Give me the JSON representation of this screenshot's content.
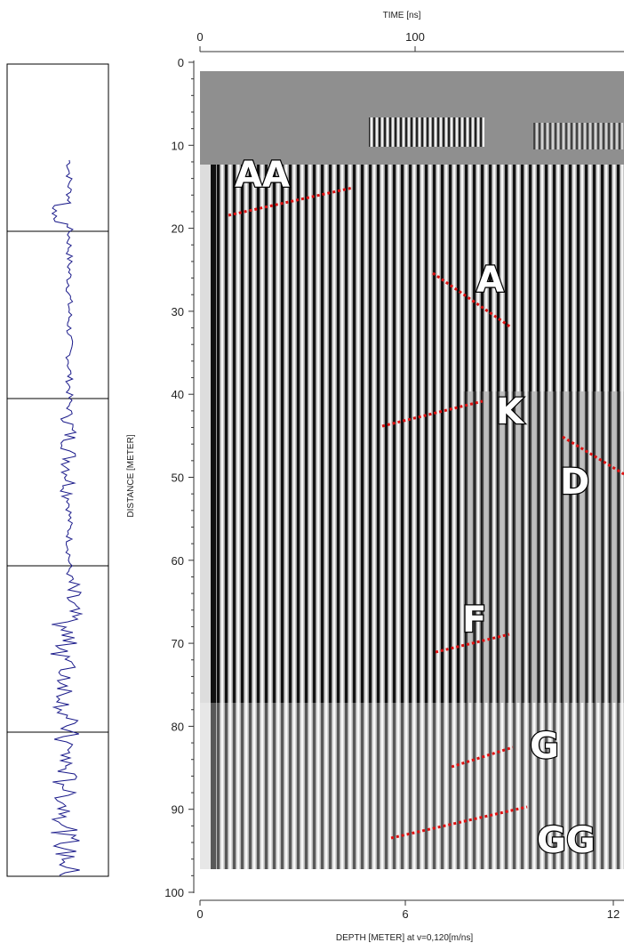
{
  "figure": {
    "top_axis": {
      "label": "TIME [ns]",
      "ticks": [
        "0",
        "100"
      ]
    },
    "left_axis": {
      "label": "DISTANCE [METER]",
      "ticks": [
        "0",
        "10",
        "20",
        "30",
        "40",
        "50",
        "60",
        "70",
        "80",
        "90",
        "100"
      ]
    },
    "bottom_axis": {
      "label": "DEPTH [METER] at v=0,120[m/ns]",
      "ticks": [
        "0",
        "6",
        "12"
      ]
    },
    "annotations": [
      "AA",
      "A",
      "K",
      "D",
      "F",
      "G",
      "GG"
    ]
  }
}
